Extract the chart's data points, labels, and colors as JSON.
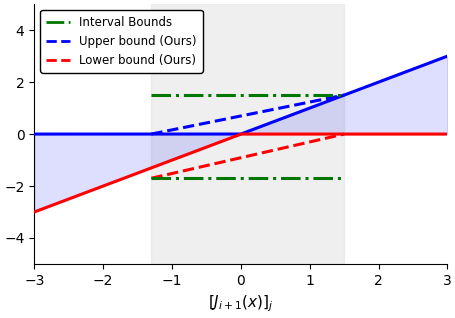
{
  "xlim": [
    -3,
    3
  ],
  "ylim": [
    -5,
    5
  ],
  "xlabel": "$[J_{i+1}(x)]_j$",
  "gray_region": [
    -1.3,
    1.5
  ],
  "upper_bound_interval": 1.5,
  "lower_bound_interval": -1.7,
  "solid_slope": 1.0,
  "blue_fill_alpha": 0.13,
  "gray_fill_alpha": 0.5,
  "gray_fill_color": "#e0e0e0",
  "blue_color": "#0000ff",
  "red_color": "#ff0000",
  "green_color": "#007700",
  "line_lw": 2.2,
  "dashed_lw": 2.2,
  "tick_labels_x": [
    -3,
    -2,
    -1,
    0,
    1,
    2,
    3
  ],
  "tick_labels_y": [
    -4,
    -2,
    0,
    2,
    4
  ],
  "legend_entries": [
    "Interval Bounds",
    "Upper bound (Ours)",
    "Lower bound (Ours)"
  ],
  "figsize": [
    4.56,
    3.18
  ],
  "dpi": 100
}
